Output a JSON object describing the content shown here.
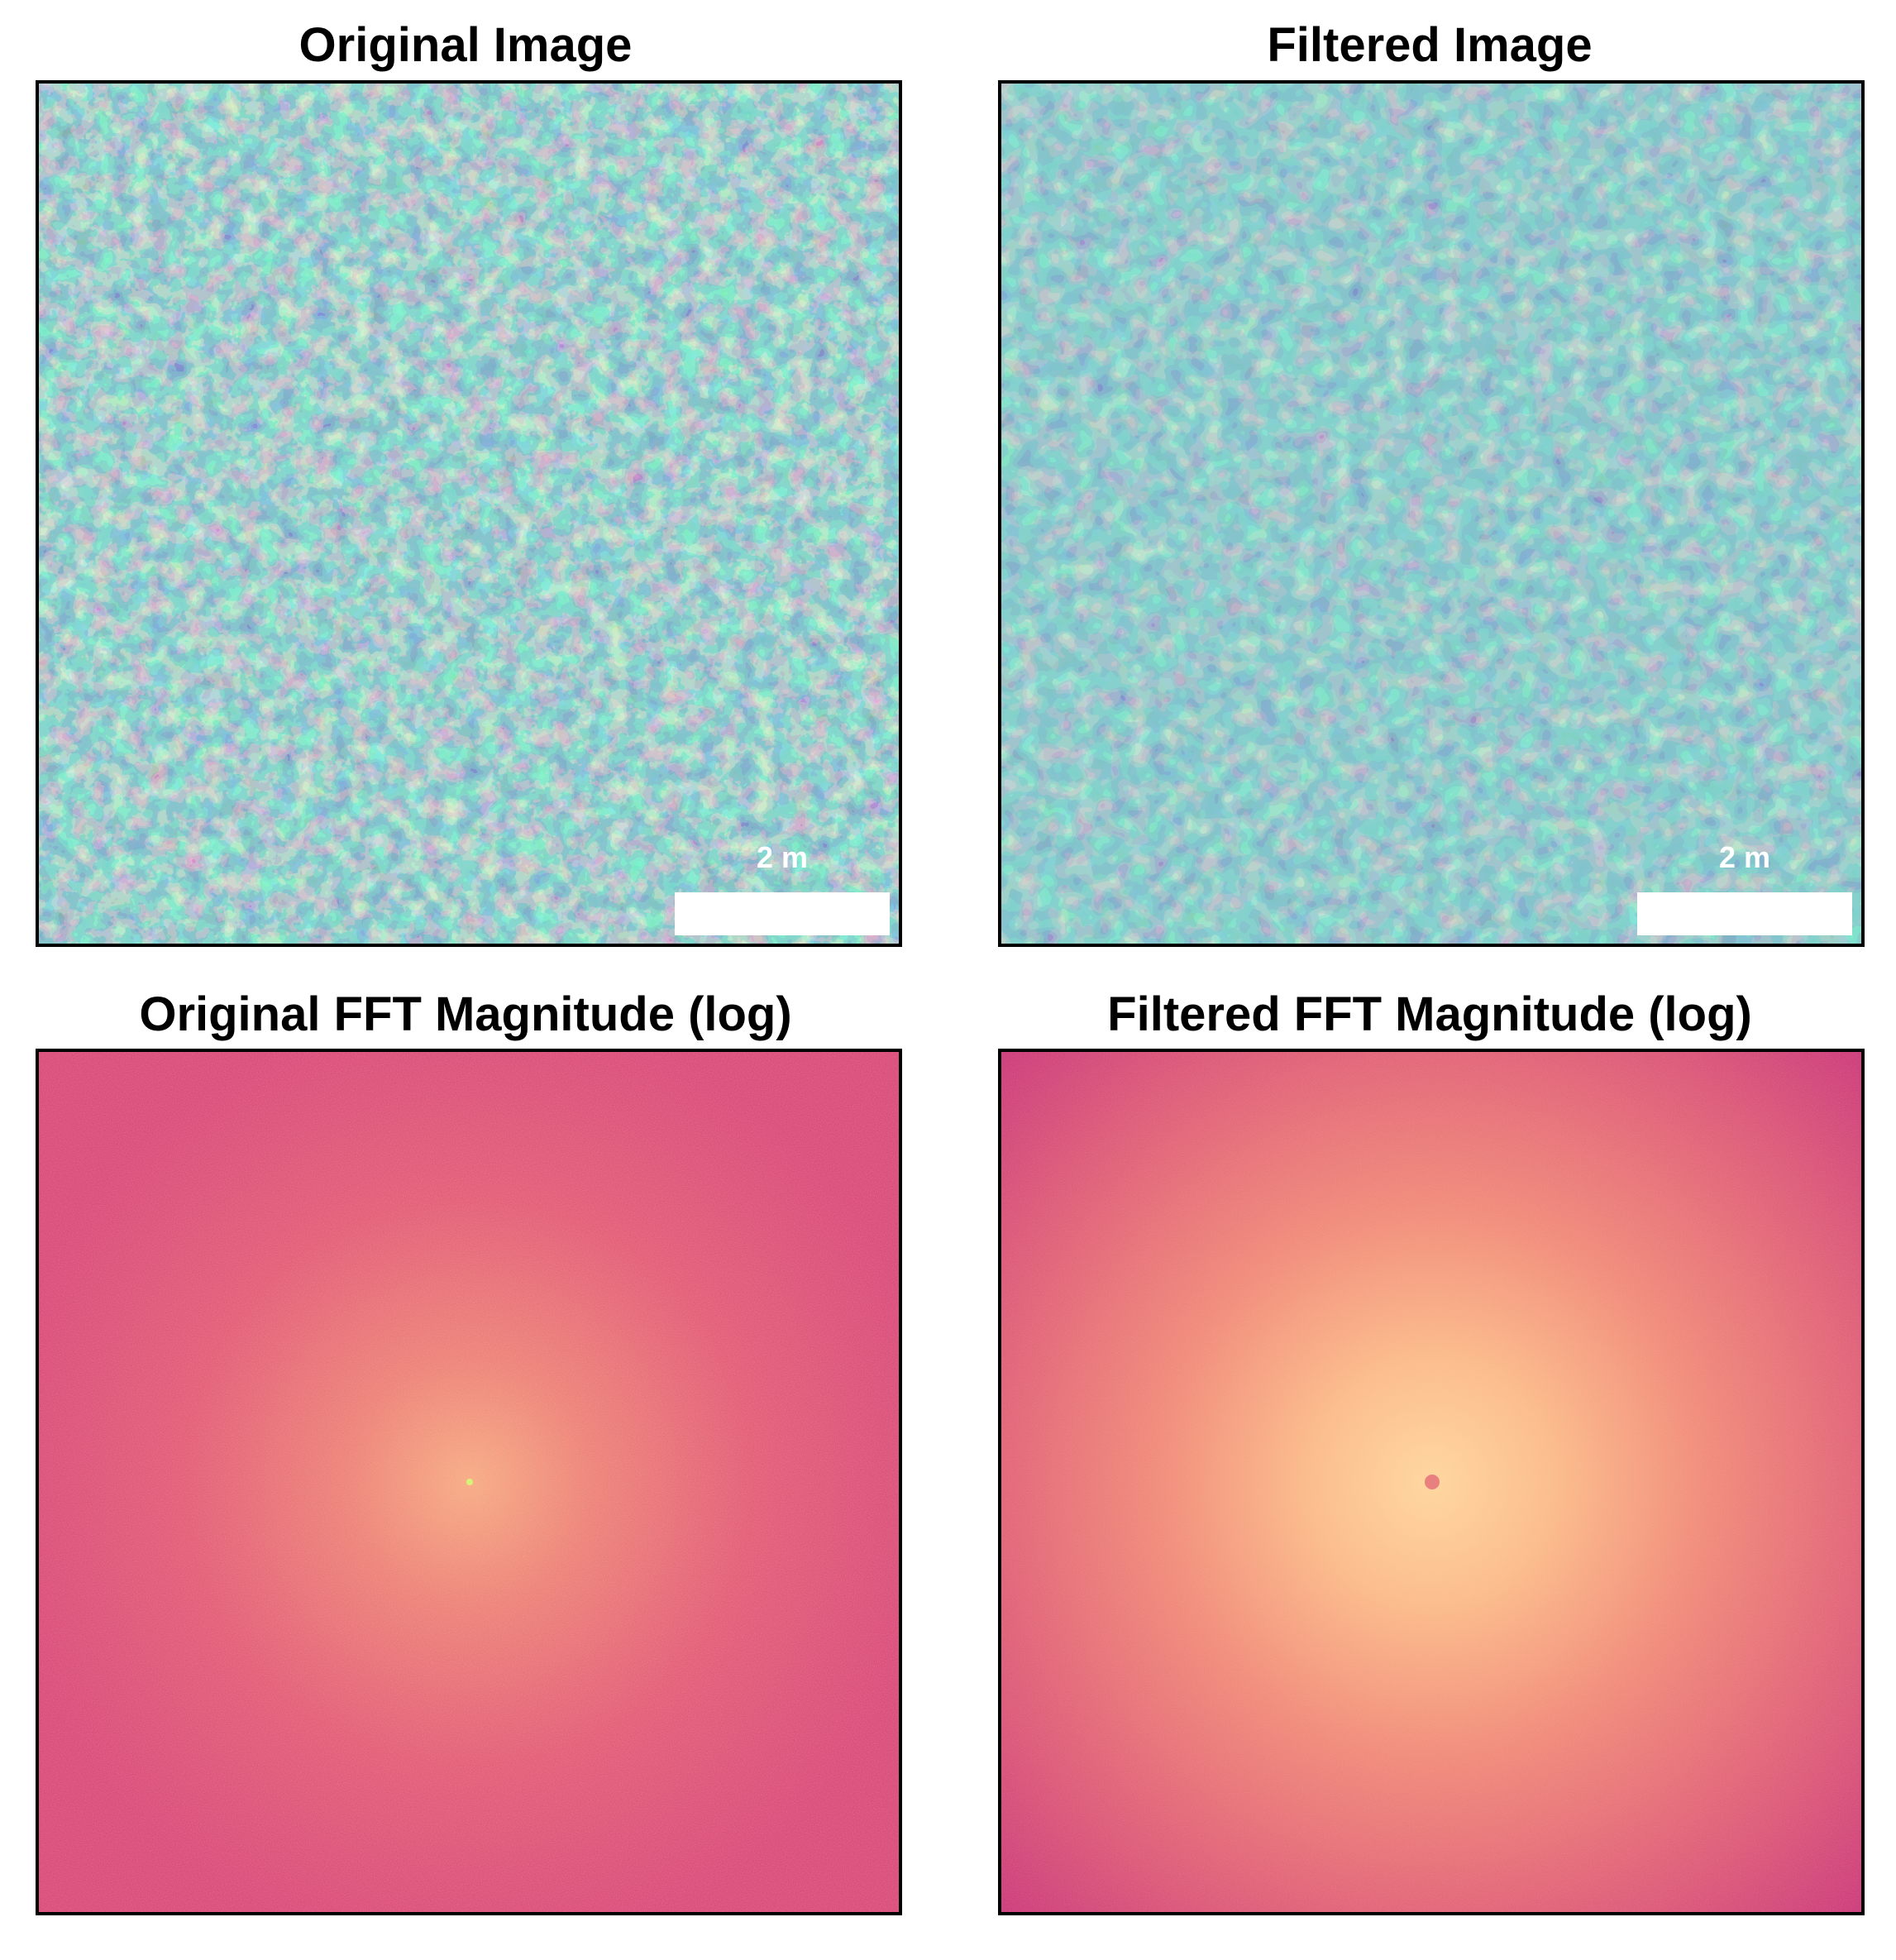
{
  "panels": {
    "original_image": {
      "title": "Original Image",
      "scalebar": "2 m"
    },
    "filtered_image": {
      "title": "Filtered Image",
      "scalebar": "2 m"
    },
    "original_fft": {
      "title": "Original FFT Magnitude (log)"
    },
    "filtered_fft": {
      "title": "Filtered FFT Magnitude (log)"
    }
  },
  "colors": {
    "rock_dark": "#2f4f7a",
    "rock_mid": "#3e9e9a",
    "rock_light": "#b9e6b5",
    "fft_edge": "#d63c72",
    "fft_mid": "#e8696b",
    "fft_center": "#ffd08f"
  }
}
